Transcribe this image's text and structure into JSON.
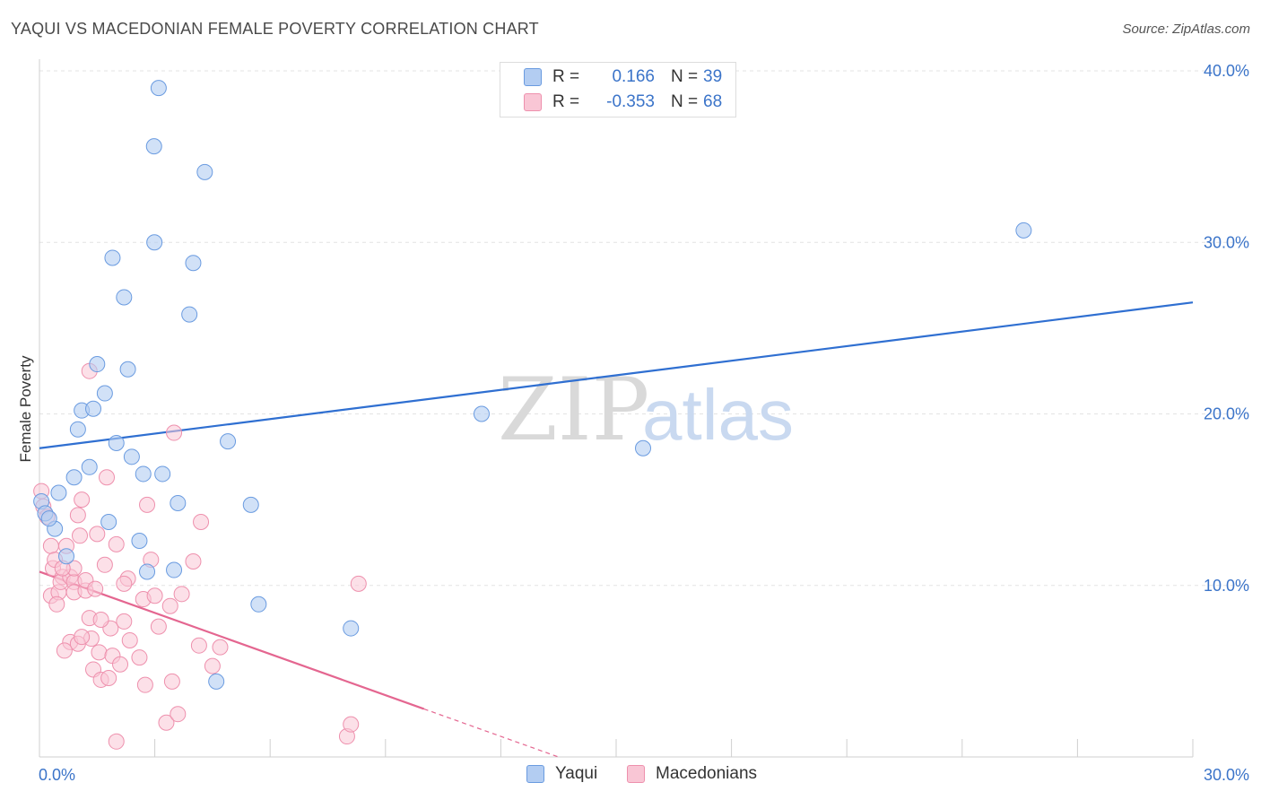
{
  "header": {
    "title": "YAQUI VS MACEDONIAN FEMALE POVERTY CORRELATION CHART",
    "source": "Source: ZipAtlas.com"
  },
  "watermark": {
    "zip": "ZIP",
    "atlas": "atlas"
  },
  "legend": {
    "rows": [
      {
        "r_label": "R =",
        "r_value": "0.166",
        "n_label": "N =",
        "n_value": "39"
      },
      {
        "r_label": "R =",
        "r_value": "-0.353",
        "n_label": "N =",
        "n_value": "68"
      }
    ]
  },
  "bottom_legend": {
    "yaqui": "Yaqui",
    "macedonians": "Macedonians"
  },
  "colors": {
    "yaqui_fill": "#b3cdf2",
    "yaqui_stroke": "#6a9be0",
    "yaqui_line": "#2f6fd1",
    "mac_fill": "#f9c6d5",
    "mac_stroke": "#ee90ad",
    "mac_line": "#e46690",
    "grid": "#e3e3e3",
    "tick_text": "#3b74c9"
  },
  "chart_data": {
    "type": "scatter",
    "title": "YAQUI VS MACEDONIAN FEMALE POVERTY CORRELATION CHART",
    "xlabel": "",
    "ylabel": "Female Poverty",
    "xlim": [
      0,
      30
    ],
    "ylim": [
      0,
      40
    ],
    "x_tick_labels": [
      "0.0%",
      "30.0%"
    ],
    "y_ticks": [
      10,
      20,
      30,
      40
    ],
    "y_tick_labels": [
      "10.0%",
      "20.0%",
      "30.0%",
      "40.0%"
    ],
    "grid": true,
    "series": [
      {
        "name": "Yaqui",
        "r": 0.166,
        "n": 39,
        "trend": {
          "x": [
            0,
            30
          ],
          "y": [
            18.0,
            26.5
          ]
        },
        "points": [
          [
            3.1,
            39.0
          ],
          [
            2.98,
            35.6
          ],
          [
            4.3,
            34.1
          ],
          [
            2.99,
            30.0
          ],
          [
            1.9,
            29.1
          ],
          [
            4.0,
            28.8
          ],
          [
            2.2,
            26.8
          ],
          [
            3.9,
            25.8
          ],
          [
            25.6,
            30.7
          ],
          [
            1.5,
            22.9
          ],
          [
            2.3,
            22.6
          ],
          [
            1.7,
            21.2
          ],
          [
            1.1,
            20.2
          ],
          [
            1.4,
            20.3
          ],
          [
            11.5,
            20.0
          ],
          [
            1.0,
            19.1
          ],
          [
            2.0,
            18.3
          ],
          [
            4.9,
            18.4
          ],
          [
            15.7,
            18.0
          ],
          [
            2.4,
            17.5
          ],
          [
            1.3,
            16.9
          ],
          [
            2.7,
            16.5
          ],
          [
            3.2,
            16.5
          ],
          [
            0.9,
            16.3
          ],
          [
            0.5,
            15.4
          ],
          [
            3.6,
            14.8
          ],
          [
            5.5,
            14.7
          ],
          [
            0.05,
            14.9
          ],
          [
            0.15,
            14.2
          ],
          [
            1.8,
            13.7
          ],
          [
            0.4,
            13.3
          ],
          [
            2.6,
            12.6
          ],
          [
            0.7,
            11.7
          ],
          [
            2.8,
            10.8
          ],
          [
            3.5,
            10.9
          ],
          [
            5.7,
            8.9
          ],
          [
            8.1,
            7.5
          ],
          [
            4.6,
            4.4
          ],
          [
            0.25,
            13.9
          ]
        ]
      },
      {
        "name": "Macedonians",
        "r": -0.353,
        "n": 68,
        "trend": {
          "x": [
            0,
            10.0
          ],
          "y": [
            10.8,
            2.8
          ]
        },
        "trend_dashed": {
          "x": [
            10.0,
            13.5
          ],
          "y": [
            2.8,
            0
          ]
        },
        "points": [
          [
            0.05,
            15.5
          ],
          [
            0.1,
            14.6
          ],
          [
            0.2,
            14.0
          ],
          [
            0.3,
            12.3
          ],
          [
            0.35,
            11.0
          ],
          [
            0.4,
            11.5
          ],
          [
            0.3,
            9.4
          ],
          [
            0.5,
            9.6
          ],
          [
            0.45,
            8.9
          ],
          [
            0.6,
            10.5
          ],
          [
            0.55,
            10.2
          ],
          [
            0.7,
            12.3
          ],
          [
            0.8,
            10.5
          ],
          [
            0.9,
            10.2
          ],
          [
            0.9,
            9.6
          ],
          [
            1.0,
            14.1
          ],
          [
            1.05,
            12.9
          ],
          [
            1.1,
            15.0
          ],
          [
            1.2,
            9.7
          ],
          [
            1.3,
            8.1
          ],
          [
            1.35,
            6.9
          ],
          [
            1.4,
            5.1
          ],
          [
            1.5,
            13.0
          ],
          [
            1.55,
            6.1
          ],
          [
            1.6,
            4.5
          ],
          [
            1.7,
            11.2
          ],
          [
            1.75,
            16.3
          ],
          [
            1.8,
            4.6
          ],
          [
            1.85,
            7.5
          ],
          [
            1.9,
            5.9
          ],
          [
            2.0,
            12.4
          ],
          [
            2.1,
            5.4
          ],
          [
            2.2,
            7.9
          ],
          [
            2.3,
            10.4
          ],
          [
            2.35,
            6.8
          ],
          [
            2.6,
            5.8
          ],
          [
            2.7,
            9.2
          ],
          [
            2.75,
            4.2
          ],
          [
            2.8,
            14.7
          ],
          [
            2.9,
            11.5
          ],
          [
            3.0,
            9.4
          ],
          [
            3.1,
            7.6
          ],
          [
            3.3,
            2.0
          ],
          [
            3.4,
            8.8
          ],
          [
            3.45,
            4.4
          ],
          [
            3.5,
            18.9
          ],
          [
            3.6,
            2.5
          ],
          [
            3.7,
            9.5
          ],
          [
            4.0,
            11.4
          ],
          [
            4.15,
            6.5
          ],
          [
            4.2,
            13.7
          ],
          [
            4.5,
            5.3
          ],
          [
            4.7,
            6.4
          ],
          [
            0.8,
            6.7
          ],
          [
            1.0,
            6.6
          ],
          [
            0.65,
            6.2
          ],
          [
            1.3,
            22.5
          ],
          [
            2.0,
            0.9
          ],
          [
            8.0,
            1.2
          ],
          [
            8.1,
            1.9
          ],
          [
            8.3,
            10.1
          ],
          [
            0.9,
            11.0
          ],
          [
            1.2,
            10.3
          ],
          [
            1.45,
            9.8
          ],
          [
            2.2,
            10.1
          ],
          [
            1.6,
            8.0
          ],
          [
            0.6,
            11.0
          ],
          [
            1.1,
            7.0
          ]
        ]
      }
    ]
  }
}
